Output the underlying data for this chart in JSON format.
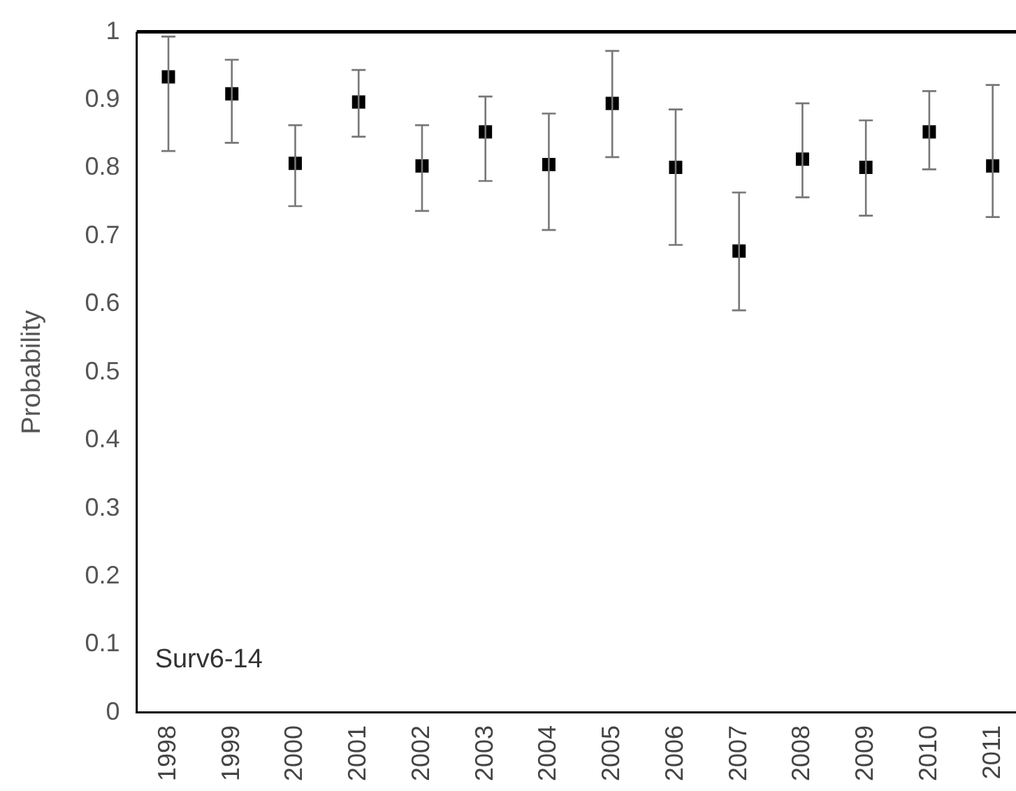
{
  "chart_data": {
    "type": "scatter",
    "ylabel": "Probability",
    "annotations": [
      "Surv6-14"
    ],
    "categories": [
      "1998",
      "1999",
      "2000",
      "2001",
      "2002",
      "2003",
      "2004",
      "2005",
      "2006",
      "2007",
      "2008",
      "2009",
      "2010",
      "2011"
    ],
    "values": [
      0.934,
      0.909,
      0.807,
      0.897,
      0.803,
      0.853,
      0.805,
      0.895,
      0.801,
      0.678,
      0.813,
      0.801,
      0.853,
      0.803
    ],
    "errors": [
      [
        0.825,
        0.993
      ],
      [
        0.837,
        0.959
      ],
      [
        0.744,
        0.863
      ],
      [
        0.846,
        0.944
      ],
      [
        0.737,
        0.863
      ],
      [
        0.781,
        0.905
      ],
      [
        0.709,
        0.88
      ],
      [
        0.816,
        0.972
      ],
      [
        0.687,
        0.886
      ],
      [
        0.591,
        0.764
      ],
      [
        0.757,
        0.895
      ],
      [
        0.73,
        0.87
      ],
      [
        0.798,
        0.913
      ],
      [
        0.728,
        0.922
      ]
    ],
    "color": "#000000",
    "marker": "square",
    "ylim": [
      0,
      1
    ],
    "yticks": [
      0,
      0.1,
      0.2,
      0.3,
      0.4,
      0.5,
      0.6,
      0.7,
      0.8,
      0.9,
      1
    ]
  }
}
